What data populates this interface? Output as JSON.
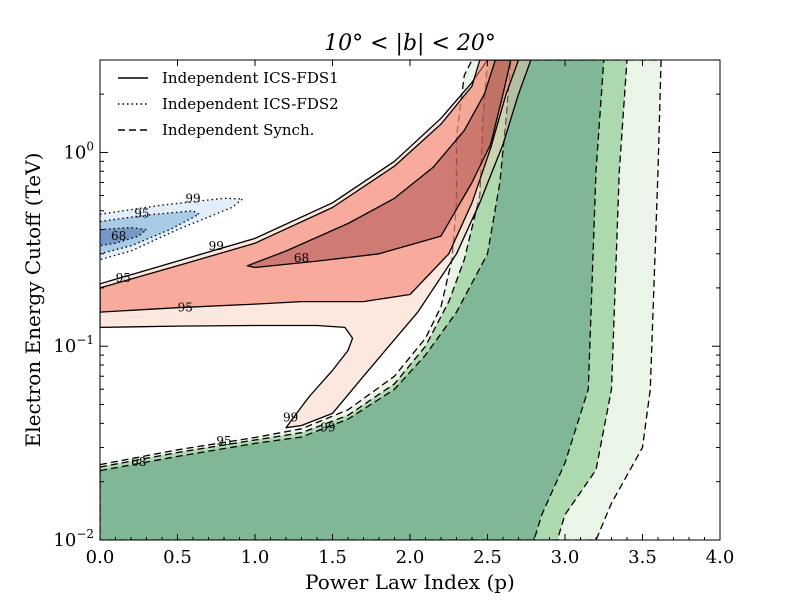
{
  "chart_data": {
    "type": "contour",
    "title": "10° < |b| < 20°",
    "xlabel": "Power Law Index (p)",
    "ylabel": "Electron Energy Cutoff (TeV)",
    "xlim": [
      0.0,
      4.0
    ],
    "ylim": [
      0.01,
      3.0
    ],
    "yscale": "log",
    "grid": false,
    "x_ticks": [
      0.0,
      0.5,
      1.0,
      1.5,
      2.0,
      2.5,
      3.0,
      3.5,
      4.0
    ],
    "x_tick_labels": [
      "0.0",
      "0.5",
      "1.0",
      "1.5",
      "2.0",
      "2.5",
      "3.0",
      "3.5",
      "4.0"
    ],
    "y_ticks": [
      0.01,
      0.1,
      1.0
    ],
    "y_tick_labels": [
      {
        "base": "10",
        "exp": "−2"
      },
      {
        "base": "10",
        "exp": "−1"
      },
      {
        "base": "10",
        "exp": "0"
      }
    ],
    "legend": {
      "placement": "top-left",
      "entries": [
        {
          "label": "Independent ICS-FDS1",
          "line": "solid"
        },
        {
          "label": "Independent ICS-FDS2",
          "line": "dotted"
        },
        {
          "label": "Independent Synch.",
          "line": "dashed"
        }
      ]
    },
    "series": [
      {
        "name": "Independent Synch.",
        "line": "dashed",
        "regions": [
          {
            "level": "99",
            "color": "#eaf5e8",
            "polygon": [
              [
                0.0,
                0.0245
              ],
              [
                0.5,
                0.0292
              ],
              [
                1.0,
                0.0338
              ],
              [
                1.3,
                0.0375
              ],
              [
                1.6,
                0.047
              ],
              [
                1.9,
                0.07
              ],
              [
                2.1,
                0.11
              ],
              [
                2.2,
                0.16
              ],
              [
                2.27,
                0.28
              ],
              [
                2.3,
                0.55
              ],
              [
                2.3,
                1.2
              ],
              [
                2.35,
                2.5
              ],
              [
                2.4,
                3.0
              ],
              [
                3.62,
                3.0
              ],
              [
                3.6,
                0.8
              ],
              [
                3.55,
                0.06
              ],
              [
                3.5,
                0.03
              ],
              [
                3.3,
                0.0155
              ],
              [
                3.2,
                0.01
              ],
              [
                0.0,
                0.01
              ]
            ]
          },
          {
            "level": "95",
            "color": "#acd9ae",
            "polygon": [
              [
                0.0,
                0.0238
              ],
              [
                0.5,
                0.0283
              ],
              [
                1.0,
                0.0328
              ],
              [
                1.3,
                0.0358
              ],
              [
                1.6,
                0.044
              ],
              [
                1.9,
                0.064
              ],
              [
                2.1,
                0.1
              ],
              [
                2.25,
                0.17
              ],
              [
                2.35,
                0.28
              ],
              [
                2.45,
                0.6
              ],
              [
                2.47,
                1.5
              ],
              [
                2.5,
                3.0
              ],
              [
                3.4,
                3.0
              ],
              [
                3.35,
                0.8
              ],
              [
                3.3,
                0.06
              ],
              [
                3.2,
                0.023
              ],
              [
                3.0,
                0.0135
              ],
              [
                2.95,
                0.01
              ],
              [
                0.0,
                0.01
              ]
            ]
          },
          {
            "level": "68",
            "color": "#80b796",
            "polygon": [
              [
                0.0,
                0.0228
              ],
              [
                0.5,
                0.027
              ],
              [
                1.0,
                0.0315
              ],
              [
                1.3,
                0.034
              ],
              [
                1.6,
                0.042
              ],
              [
                1.9,
                0.06
              ],
              [
                2.1,
                0.09
              ],
              [
                2.3,
                0.15
              ],
              [
                2.5,
                0.3
              ],
              [
                2.58,
                0.7
              ],
              [
                2.62,
                1.5
              ],
              [
                2.65,
                3.0
              ],
              [
                3.25,
                3.0
              ],
              [
                3.2,
                0.8
              ],
              [
                3.15,
                0.06
              ],
              [
                3.0,
                0.025
              ],
              [
                2.85,
                0.0135
              ],
              [
                2.8,
                0.01
              ],
              [
                0.0,
                0.01
              ]
            ]
          }
        ]
      },
      {
        "name": "Independent ICS-FDS1",
        "line": "solid",
        "regions": [
          {
            "level": "99",
            "color": "rgba(250,200,180,0.42)",
            "polygon": [
              [
                0.0,
                0.21
              ],
              [
                0.5,
                0.275
              ],
              [
                1.0,
                0.36
              ],
              [
                1.5,
                0.55
              ],
              [
                1.9,
                0.9
              ],
              [
                2.2,
                1.5
              ],
              [
                2.4,
                2.3
              ],
              [
                2.5,
                3.0
              ],
              [
                2.78,
                3.0
              ],
              [
                2.7,
                2.0
              ],
              [
                2.6,
                1.1
              ],
              [
                2.45,
                0.55
              ],
              [
                2.3,
                0.3
              ],
              [
                2.05,
                0.15
              ],
              [
                1.7,
                0.07
              ],
              [
                1.5,
                0.045
              ],
              [
                1.3,
                0.039
              ],
              [
                1.2,
                0.038
              ],
              [
                1.24,
                0.042
              ],
              [
                1.35,
                0.055
              ],
              [
                1.5,
                0.075
              ],
              [
                1.6,
                0.095
              ],
              [
                1.63,
                0.11
              ],
              [
                1.58,
                0.125
              ],
              [
                1.4,
                0.128
              ],
              [
                1.0,
                0.128
              ],
              [
                0.5,
                0.127
              ],
              [
                0.0,
                0.125
              ]
            ]
          },
          {
            "level": "95",
            "color": "rgba(244,120,100,0.55)",
            "polygon": [
              [
                0.0,
                0.2
              ],
              [
                0.5,
                0.26
              ],
              [
                1.0,
                0.34
              ],
              [
                1.5,
                0.52
              ],
              [
                1.9,
                0.85
              ],
              [
                2.2,
                1.4
              ],
              [
                2.4,
                2.2
              ],
              [
                2.45,
                3.0
              ],
              [
                2.7,
                3.0
              ],
              [
                2.62,
                2.0
              ],
              [
                2.52,
                1.05
              ],
              [
                2.4,
                0.55
              ],
              [
                2.25,
                0.3
              ],
              [
                2.0,
                0.185
              ],
              [
                1.7,
                0.17
              ],
              [
                1.3,
                0.17
              ],
              [
                1.0,
                0.165
              ],
              [
                0.5,
                0.158
              ],
              [
                0.0,
                0.15
              ]
            ]
          },
          {
            "level": "68",
            "color": "rgba(120,20,30,0.32)",
            "polygon": [
              [
                0.95,
                0.26
              ],
              [
                1.2,
                0.31
              ],
              [
                1.6,
                0.43
              ],
              [
                1.9,
                0.58
              ],
              [
                2.15,
                0.84
              ],
              [
                2.35,
                1.3
              ],
              [
                2.48,
                2.0
              ],
              [
                2.55,
                3.0
              ],
              [
                2.65,
                3.0
              ],
              [
                2.6,
                2.0
              ],
              [
                2.52,
                1.1
              ],
              [
                2.4,
                0.7
              ],
              [
                2.2,
                0.37
              ],
              [
                1.8,
                0.3
              ],
              [
                1.4,
                0.275
              ],
              [
                1.0,
                0.255
              ]
            ]
          }
        ]
      },
      {
        "name": "Independent ICS-FDS2",
        "line": "dotted",
        "regions": [
          {
            "level": "99",
            "color": "#e2eefa",
            "polygon": [
              [
                0.0,
                0.48
              ],
              [
                0.4,
                0.535
              ],
              [
                0.8,
                0.58
              ],
              [
                0.92,
                0.575
              ],
              [
                0.85,
                0.52
              ],
              [
                0.5,
                0.4
              ],
              [
                0.2,
                0.31
              ],
              [
                0.0,
                0.28
              ]
            ]
          },
          {
            "level": "95",
            "color": "#a9cbe6",
            "polygon": [
              [
                0.0,
                0.44
              ],
              [
                0.3,
                0.475
              ],
              [
                0.6,
                0.5
              ],
              [
                0.64,
                0.48
              ],
              [
                0.45,
                0.4
              ],
              [
                0.2,
                0.33
              ],
              [
                0.0,
                0.3
              ]
            ]
          },
          {
            "level": "68",
            "color": "#7599c6",
            "polygon": [
              [
                0.0,
                0.4
              ],
              [
                0.2,
                0.41
              ],
              [
                0.3,
                0.4
              ],
              [
                0.25,
                0.37
              ],
              [
                0.1,
                0.34
              ],
              [
                0.0,
                0.33
              ]
            ]
          }
        ]
      }
    ],
    "contour_labels": [
      {
        "text": "99",
        "x": 0.6,
        "y": 0.58
      },
      {
        "text": "95",
        "x": 0.27,
        "y": 0.485
      },
      {
        "text": "68",
        "x": 0.12,
        "y": 0.37
      },
      {
        "text": "99",
        "x": 0.75,
        "y": 0.33
      },
      {
        "text": "95",
        "x": 0.15,
        "y": 0.225
      },
      {
        "text": "95",
        "x": 0.55,
        "y": 0.158
      },
      {
        "text": "68",
        "x": 1.3,
        "y": 0.285
      },
      {
        "text": "99",
        "x": 1.23,
        "y": 0.043
      },
      {
        "text": "99",
        "x": 1.47,
        "y": 0.038
      },
      {
        "text": "95",
        "x": 0.8,
        "y": 0.0325
      },
      {
        "text": "68",
        "x": 0.25,
        "y": 0.0252
      }
    ]
  }
}
